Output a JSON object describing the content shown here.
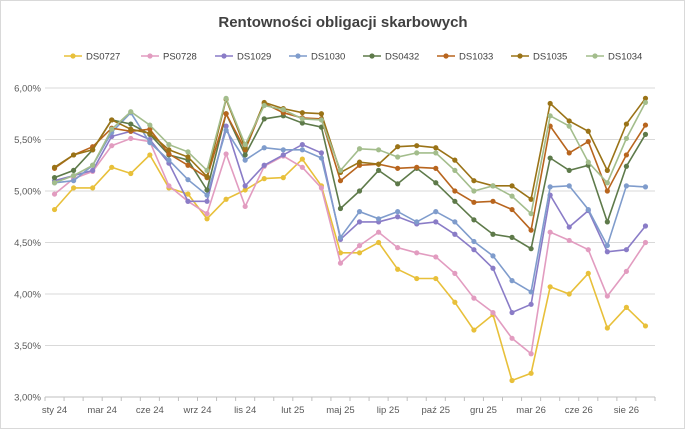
{
  "chart_data": {
    "type": "line",
    "title": "Rentowności obligacji skarbowych",
    "xlabel": "",
    "ylabel": "",
    "ylim": [
      0.03,
      0.06
    ],
    "y_ticks": [
      "3,00%",
      "3,50%",
      "4,00%",
      "4,50%",
      "5,00%",
      "5,50%",
      "6,00%"
    ],
    "x_tick_labels": [
      "sty 24",
      "mar 24",
      "cze 24",
      "wrz 24",
      "lis 24",
      "lut 25",
      "maj 25",
      "lip 25",
      "paź 25",
      "gru 25",
      "mar 26",
      "cze 26",
      "sie 26"
    ],
    "grid": "horizontal",
    "legend_position": "top",
    "series": [
      {
        "name": "DS0727",
        "color": "#e8c03a",
        "values": [
          0.0482,
          0.0503,
          0.0503,
          0.0523,
          0.0517,
          0.0535,
          0.0503,
          0.0497,
          0.0473,
          0.0492,
          0.0501,
          0.0512,
          0.0513,
          0.0531,
          0.0505,
          0.044,
          0.044,
          0.045,
          0.0424,
          0.0415,
          0.0415,
          0.0392,
          0.0365,
          0.038,
          0.0316,
          0.0323,
          0.0407,
          0.04,
          0.042,
          0.0367,
          0.0387,
          0.0369
        ]
      },
      {
        "name": "PS0728",
        "color": "#e29cc0",
        "values": [
          0.0497,
          0.0512,
          0.0519,
          0.0544,
          0.0551,
          0.0548,
          0.0505,
          0.049,
          0.0478,
          0.0536,
          0.0485,
          0.0524,
          0.0534,
          0.0523,
          0.0503,
          0.043,
          0.0447,
          0.046,
          0.0445,
          0.044,
          0.0436,
          0.042,
          0.0396,
          0.0382,
          0.0357,
          0.0342,
          0.046,
          0.0452,
          0.0443,
          0.0398,
          0.0422,
          0.045
        ]
      },
      {
        "name": "DS1029",
        "color": "#8a7cc7",
        "values": [
          0.051,
          0.0515,
          0.052,
          0.0553,
          0.0558,
          0.055,
          0.0527,
          0.049,
          0.049,
          0.0563,
          0.0505,
          0.0525,
          0.0535,
          0.0545,
          0.0537,
          0.0453,
          0.047,
          0.047,
          0.0475,
          0.0468,
          0.047,
          0.0458,
          0.0443,
          0.0425,
          0.0382,
          0.039,
          0.0496,
          0.0465,
          0.0481,
          0.0441,
          0.0443,
          0.0466
        ]
      },
      {
        "name": "DS1030",
        "color": "#7f9ccc",
        "values": [
          0.0508,
          0.051,
          0.0525,
          0.0557,
          0.0576,
          0.0547,
          0.053,
          0.0511,
          0.0496,
          0.0559,
          0.053,
          0.0542,
          0.054,
          0.054,
          0.0532,
          0.0455,
          0.048,
          0.0473,
          0.048,
          0.047,
          0.048,
          0.047,
          0.0451,
          0.0437,
          0.0413,
          0.0402,
          0.0504,
          0.0505,
          0.0482,
          0.0447,
          0.0505,
          0.0504
        ]
      },
      {
        "name": "DS0432",
        "color": "#5e7a4a",
        "values": [
          0.0513,
          0.052,
          0.054,
          0.0569,
          0.0565,
          0.0555,
          0.0535,
          0.053,
          0.0501,
          0.0575,
          0.0535,
          0.057,
          0.0573,
          0.0566,
          0.0562,
          0.0483,
          0.05,
          0.052,
          0.0507,
          0.0522,
          0.0508,
          0.049,
          0.0472,
          0.0458,
          0.0455,
          0.0444,
          0.0532,
          0.052,
          0.0525,
          0.047,
          0.0524,
          0.0555
        ]
      },
      {
        "name": "DS1033",
        "color": "#b8651e",
        "values": [
          0.0522,
          0.0535,
          0.0543,
          0.0561,
          0.0558,
          0.056,
          0.0536,
          0.0525,
          0.0513,
          0.0575,
          0.054,
          0.0585,
          0.0576,
          0.0571,
          0.057,
          0.051,
          0.0525,
          0.0526,
          0.0522,
          0.0523,
          0.0522,
          0.05,
          0.0489,
          0.049,
          0.0482,
          0.0462,
          0.0563,
          0.0537,
          0.0548,
          0.05,
          0.0535,
          0.0564
        ]
      },
      {
        "name": "DS1035",
        "color": "#9a7317",
        "values": [
          0.0523,
          0.0535,
          0.054,
          0.0569,
          0.056,
          0.0556,
          0.054,
          0.0533,
          0.0514,
          0.0589,
          0.0542,
          0.0586,
          0.058,
          0.0576,
          0.0575,
          0.0518,
          0.0528,
          0.0526,
          0.0543,
          0.0544,
          0.0542,
          0.053,
          0.051,
          0.0505,
          0.0505,
          0.0492,
          0.0585,
          0.0568,
          0.0558,
          0.052,
          0.0565,
          0.059
        ]
      },
      {
        "name": "DS1034",
        "color": "#a3bd8c",
        "values": [
          0.0508,
          0.0515,
          0.0525,
          0.056,
          0.0577,
          0.0564,
          0.0545,
          0.0538,
          0.052,
          0.059,
          0.0545,
          0.0583,
          0.0579,
          0.057,
          0.0569,
          0.052,
          0.0541,
          0.054,
          0.0533,
          0.0537,
          0.0537,
          0.052,
          0.05,
          0.0505,
          0.0495,
          0.0478,
          0.0573,
          0.0563,
          0.0528,
          0.0508,
          0.0551,
          0.0586
        ]
      }
    ]
  }
}
